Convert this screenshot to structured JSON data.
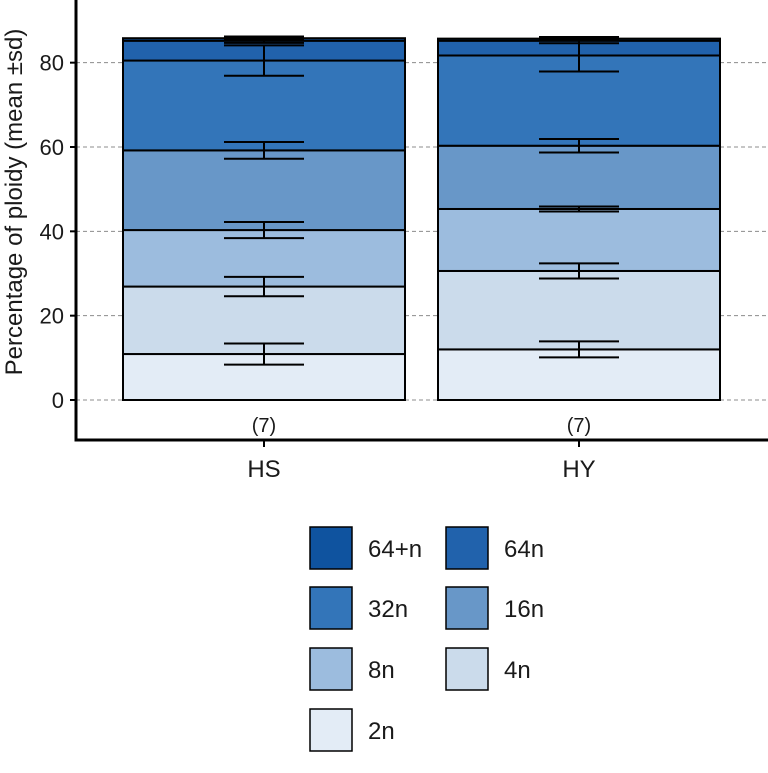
{
  "chart_data": {
    "type": "bar",
    "stacked": true,
    "title": "",
    "xlabel": "",
    "ylabel": "Percentage of ploidy (mean ±sd)",
    "ylim": [
      -9,
      94
    ],
    "yticks": [
      0,
      20,
      40,
      60,
      80
    ],
    "grid": "horizontal dashed",
    "legend_position": "bottom",
    "categories": [
      "HS",
      "HY"
    ],
    "sample_labels": [
      "(7)",
      "(7)"
    ],
    "series": [
      {
        "name": "2n",
        "color": "#e3ecf6",
        "values": [
          10.9,
          12.0
        ],
        "sd": [
          2.5,
          1.9
        ]
      },
      {
        "name": "4n",
        "color": "#cbdbeb",
        "values": [
          16.0,
          18.6
        ],
        "sd": [
          2.3,
          1.8
        ]
      },
      {
        "name": "8n",
        "color": "#9cbcde",
        "values": [
          13.4,
          14.7
        ],
        "sd": [
          1.9,
          0.6
        ]
      },
      {
        "name": "16n",
        "color": "#6897c8",
        "values": [
          18.9,
          15.0
        ],
        "sd": [
          2.0,
          1.6
        ]
      },
      {
        "name": "32n",
        "color": "#3375b9",
        "values": [
          21.3,
          21.4
        ],
        "sd": [
          3.6,
          3.8
        ]
      },
      {
        "name": "64n",
        "color": "#2162ac",
        "values": [
          4.7,
          3.5
        ],
        "sd": [
          0.5,
          0.6
        ]
      },
      {
        "name": "64+n",
        "color": "#0f539f",
        "values": [
          0.6,
          0.5
        ],
        "sd": [
          0.4,
          0.4
        ]
      }
    ]
  }
}
